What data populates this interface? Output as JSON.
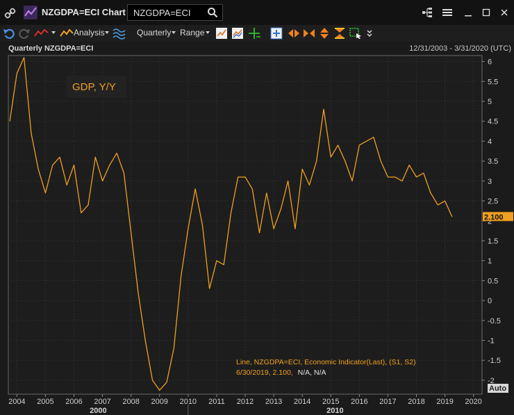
{
  "window": {
    "title": "NZGDPA=ECI Chart",
    "search_value": "NZGDPA=ECI"
  },
  "toolbar": {
    "analysis_label": "Analysis",
    "interval_label": "Quarterly",
    "range_label": "Range"
  },
  "chart_header": {
    "name": "Quarterly NZGDPA=ECI",
    "date_range": "12/31/2003 - 3/31/2020 (UTC)"
  },
  "colors": {
    "line": "#f0a020",
    "price_tag_bg": "#f0a020",
    "text_orange": "#f0a020",
    "background": "#1b1b1b",
    "grid": "#3a3a3a"
  },
  "overlay": {
    "series_label": "GDP, Y/Y",
    "legend_line1": "Line, NZGDPA=ECI, Economic Indicator(Last), (S1, S2)",
    "legend_line2_date_value": "6/30/2019, 2.100,",
    "legend_line2_na": "N/A, N/A",
    "last_value_tag": "2.100",
    "auto_label": "Auto"
  },
  "chart_data": {
    "type": "line",
    "title": "",
    "series_name": "GDP, Y/Y",
    "x_tick_labels": [
      "2004",
      "2005",
      "2006",
      "2007",
      "2008",
      "2009",
      "2010",
      "2011",
      "2012",
      "2013",
      "2014",
      "2015",
      "2016",
      "2017",
      "2018",
      "2019",
      "2020"
    ],
    "x_ticks": [
      2004,
      2005,
      2006,
      2007,
      2008,
      2009,
      2010,
      2011,
      2012,
      2013,
      2014,
      2015,
      2016,
      2017,
      2018,
      2019,
      2020
    ],
    "decade_labels": [
      "2000",
      "2010"
    ],
    "y_tick_labels": [
      "6",
      "5.5",
      "5",
      "4.5",
      "4",
      "3.5",
      "3",
      "2.5",
      "2",
      "1.5",
      "1",
      "0.5",
      "0",
      "-0.5",
      "-1",
      "-1.5",
      "-2"
    ],
    "y_ticks": [
      6,
      5.5,
      5,
      4.5,
      4,
      3.5,
      3,
      2.5,
      2,
      1.5,
      1,
      0.5,
      0,
      -0.5,
      -1,
      -1.5,
      -2
    ],
    "ylim": [
      -2.35,
      6.15
    ],
    "xlim": [
      2003.7,
      2020.3
    ],
    "x": [
      2003.75,
      2004.0,
      2004.25,
      2004.5,
      2004.75,
      2005.0,
      2005.25,
      2005.5,
      2005.75,
      2006.0,
      2006.25,
      2006.5,
      2006.75,
      2007.0,
      2007.25,
      2007.5,
      2007.75,
      2008.0,
      2008.25,
      2008.5,
      2008.75,
      2009.0,
      2009.25,
      2009.5,
      2009.75,
      2010.0,
      2010.25,
      2010.5,
      2010.75,
      2011.0,
      2011.25,
      2011.5,
      2011.75,
      2012.0,
      2012.25,
      2012.5,
      2012.75,
      2013.0,
      2013.25,
      2013.5,
      2013.75,
      2014.0,
      2014.25,
      2014.5,
      2014.75,
      2015.0,
      2015.25,
      2015.5,
      2015.75,
      2016.0,
      2016.25,
      2016.5,
      2016.75,
      2017.0,
      2017.25,
      2017.5,
      2017.75,
      2018.0,
      2018.25,
      2018.5,
      2018.75,
      2019.0,
      2019.25
    ],
    "y": [
      4.5,
      5.7,
      6.1,
      4.2,
      3.3,
      2.7,
      3.4,
      3.6,
      2.9,
      3.4,
      2.2,
      2.4,
      3.6,
      3.0,
      3.4,
      3.7,
      3.2,
      1.7,
      0.2,
      -1.0,
      -2.0,
      -2.25,
      -2.05,
      -1.2,
      0.6,
      1.8,
      2.8,
      1.9,
      0.3,
      1.0,
      0.9,
      2.2,
      3.1,
      3.1,
      2.8,
      1.7,
      2.7,
      1.8,
      2.3,
      3.0,
      1.8,
      3.3,
      2.9,
      3.5,
      4.8,
      3.6,
      3.9,
      3.5,
      3.0,
      3.9,
      4.0,
      4.1,
      3.5,
      3.1,
      3.1,
      3.0,
      3.4,
      3.1,
      3.2,
      2.7,
      2.4,
      2.5,
      2.1
    ],
    "grid": true,
    "legend": "bottom-right",
    "last_value": 2.1
  }
}
